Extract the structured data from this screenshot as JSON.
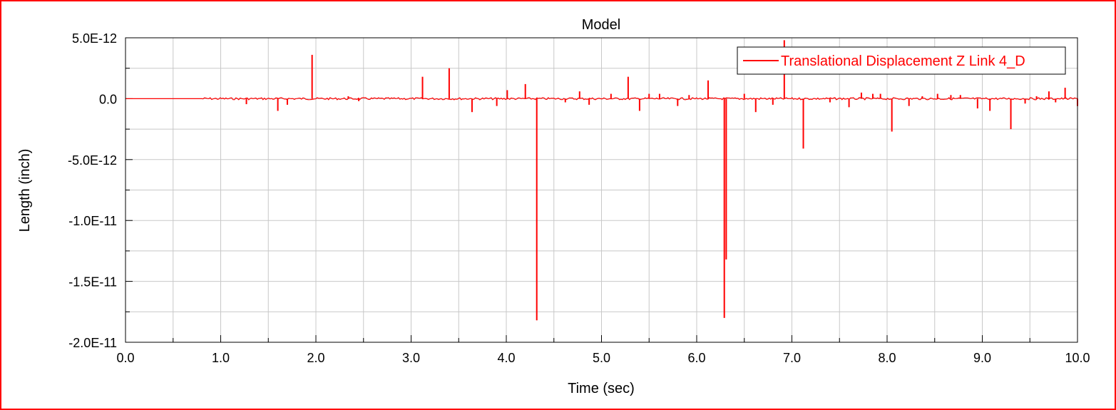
{
  "chart_data": {
    "type": "line",
    "title": "Model",
    "xlabel": "Time (sec)",
    "ylabel": "Length (inch)",
    "xlim": [
      0.0,
      10.0
    ],
    "ylim": [
      -2e-11,
      5e-12
    ],
    "x_ticks": [
      0,
      1,
      2,
      3,
      4,
      5,
      6,
      7,
      8,
      9,
      10
    ],
    "x_tick_labels": [
      "0.0",
      "1.0",
      "2.0",
      "3.0",
      "4.0",
      "5.0",
      "6.0",
      "7.0",
      "8.0",
      "9.0",
      "10.0"
    ],
    "y_ticks": [
      5e-12,
      0,
      -5e-12,
      -1e-11,
      -1.5e-11,
      -2e-11
    ],
    "y_tick_labels": [
      "5.0E-12",
      "0.0",
      "-5.0E-12",
      "-1.0E-11",
      "-1.5E-11",
      "-2.0E-11"
    ],
    "grid": true,
    "legend_position": "top-right",
    "series": [
      {
        "name": "Translational Displacement Z Link 4_D",
        "color": "#ff0000",
        "baseline": 0.0,
        "spikes": [
          [
            1.27,
            -4.5e-13
          ],
          [
            1.6,
            -1e-12
          ],
          [
            1.7,
            -5e-13
          ],
          [
            1.96,
            3.6e-12
          ],
          [
            2.34,
            2e-13
          ],
          [
            2.45,
            -2e-13
          ],
          [
            3.12,
            1.8e-12
          ],
          [
            3.4,
            2.5e-12
          ],
          [
            3.64,
            -1.1e-12
          ],
          [
            3.9,
            -6e-13
          ],
          [
            4.01,
            7e-13
          ],
          [
            4.2,
            1.2e-12
          ],
          [
            4.32,
            -1.82e-11
          ],
          [
            4.62,
            -3e-13
          ],
          [
            4.77,
            6e-13
          ],
          [
            4.87,
            -5e-13
          ],
          [
            5.1,
            4e-13
          ],
          [
            5.28,
            1.8e-12
          ],
          [
            5.4,
            -1e-12
          ],
          [
            5.5,
            4e-13
          ],
          [
            5.61,
            4e-13
          ],
          [
            5.8,
            -6e-13
          ],
          [
            5.92,
            3e-13
          ],
          [
            6.12,
            1.5e-12
          ],
          [
            6.29,
            -1.8e-11
          ],
          [
            6.31,
            -1.32e-11
          ],
          [
            6.5,
            4e-13
          ],
          [
            6.62,
            -1.1e-12
          ],
          [
            6.8,
            -5e-13
          ],
          [
            6.92,
            4.8e-12
          ],
          [
            7.12,
            -4.1e-12
          ],
          [
            7.4,
            -3e-13
          ],
          [
            7.6,
            -7e-13
          ],
          [
            7.73,
            5e-13
          ],
          [
            7.85,
            4e-13
          ],
          [
            7.93,
            4e-13
          ],
          [
            8.05,
            -2.7e-12
          ],
          [
            8.23,
            -6e-13
          ],
          [
            8.37,
            2e-13
          ],
          [
            8.53,
            4e-13
          ],
          [
            8.67,
            3e-13
          ],
          [
            8.77,
            3e-13
          ],
          [
            8.95,
            -8e-13
          ],
          [
            9.08,
            -1e-12
          ],
          [
            9.3,
            -2.5e-12
          ],
          [
            9.45,
            -4e-13
          ],
          [
            9.57,
            2e-13
          ],
          [
            9.7,
            6e-13
          ],
          [
            9.77,
            -3e-13
          ],
          [
            9.87,
            9e-13
          ],
          [
            10.0,
            -6e-13
          ]
        ]
      }
    ]
  }
}
